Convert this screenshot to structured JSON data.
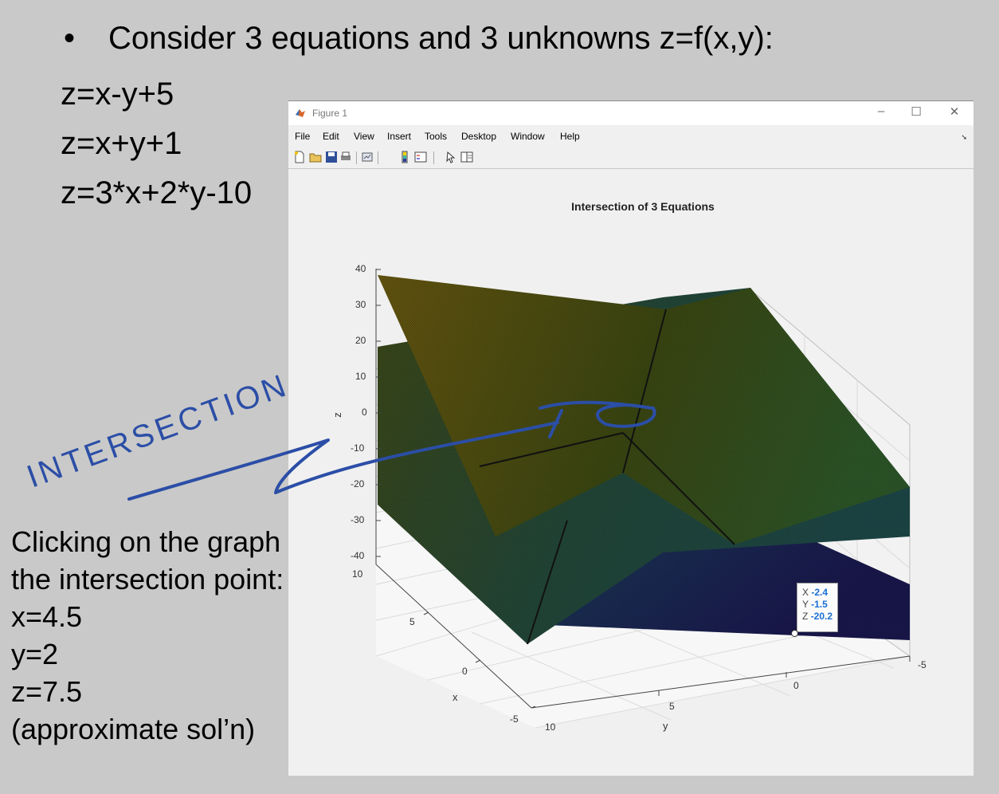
{
  "slide": {
    "bullet": "•",
    "title": "Consider 3 equations and 3 unknowns z=f(x,y):",
    "equations": [
      "z=x-y+5",
      "z=x+y+1",
      "z=3*x+2*y-10"
    ],
    "note_lines": [
      "Clicking on the graph at",
      "the intersection point:",
      "x=4.5",
      "y=2",
      "z=7.5",
      "(approximate sol’n)"
    ],
    "annotation": "INTERSECTION"
  },
  "window": {
    "title": "Figure 1",
    "controls": {
      "minimize": "–",
      "maximize": "☐",
      "close": "✕"
    },
    "menu": [
      "File",
      "Edit",
      "View",
      "Insert",
      "Tools",
      "Desktop",
      "Window",
      "Help"
    ],
    "toolbar_icons": [
      "new-figure-icon",
      "open-file-icon",
      "save-icon",
      "print-icon",
      "link-plot-icon",
      "colorbar-icon",
      "legend-icon",
      "edit-plot-icon",
      "property-inspector-icon"
    ]
  },
  "chart_data": {
    "type": "surface",
    "title": "Intersection of 3 Equations",
    "xlabel": "x",
    "ylabel": "y",
    "zlabel": "z",
    "x_ticks": [
      "10",
      "5",
      "0",
      "-5"
    ],
    "y_ticks": [
      "10",
      "5",
      "0",
      "-5"
    ],
    "z_ticks": [
      "40",
      "30",
      "20",
      "10",
      "0",
      "-10",
      "-20",
      "-30",
      "-40"
    ],
    "xlim": [
      -5,
      10
    ],
    "ylim": [
      -5,
      10
    ],
    "zlim": [
      -40,
      40
    ],
    "grid": true,
    "colormap": "parula",
    "series": [
      {
        "equation": "z=x-y+5"
      },
      {
        "equation": "z=x+y+1"
      },
      {
        "equation": "z=3*x+2*y-10"
      }
    ],
    "datatip": {
      "x_label": "X",
      "x": "-2.4",
      "y_label": "Y",
      "y": "-1.5",
      "z_label": "Z",
      "z": "-20.2"
    }
  },
  "colors": {
    "slide_bg": "#c9c9c9",
    "ink": "#2b4ea6",
    "datatip_value": "#1a6fd6"
  }
}
